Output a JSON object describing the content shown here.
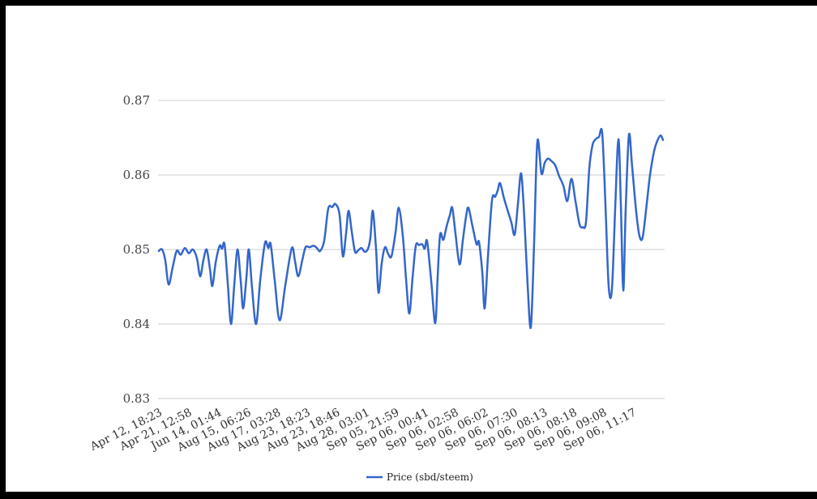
{
  "window": {
    "frame_color": "#000000",
    "canvas_color": "#ffffff"
  },
  "colors": {
    "line": "#3366cc",
    "grid": "#cccccc",
    "y_axis_text": "#444444",
    "x_axis_text": "#333333",
    "legend_text": "#222222"
  },
  "chart_data": {
    "type": "line",
    "title": "",
    "grid": true,
    "legend": {
      "position": "bottom",
      "label": "Price (sbd/steem)"
    },
    "y_axis": {
      "range": [
        0.83,
        0.87
      ],
      "tick_values": [
        0.87,
        0.86,
        0.85,
        0.84,
        0.83
      ],
      "tick_labels": [
        "0.87",
        "0.86",
        "0.85",
        "0.84",
        "0.83"
      ]
    },
    "x_axis": {
      "tick_labels": [
        "Apr 12, 18:23",
        "Apr 21, 12:58",
        "Jun 14, 01:44",
        "Aug 15, 06:26",
        "Aug 17, 03:28",
        "Aug 23, 18:23",
        "Aug 23, 18:46",
        "Aug 28, 03:01",
        "Sep 05, 21:59",
        "Sep 06, 00:41",
        "Sep 06, 02:58",
        "Sep 06, 06:02",
        "Sep 06, 07:30",
        "Sep 06, 08:13",
        "Sep 06, 08:18",
        "Sep 06, 09:08",
        "Sep 06, 11:17"
      ],
      "label_rotation_deg": -27
    },
    "series": [
      {
        "name": "Price (sbd/steem)",
        "color": "#3366cc",
        "points": [
          [
            196,
            0.8498
          ],
          [
            200,
            0.85
          ],
          [
            204,
            0.8485
          ],
          [
            208,
            0.8453
          ],
          [
            213,
            0.8476
          ],
          [
            218,
            0.8498
          ],
          [
            223,
            0.8493
          ],
          [
            228,
            0.8502
          ],
          [
            233,
            0.8495
          ],
          [
            238,
            0.85
          ],
          [
            243,
            0.8488
          ],
          [
            247,
            0.8464
          ],
          [
            251,
            0.8486
          ],
          [
            255,
            0.85
          ],
          [
            259,
            0.8474
          ],
          [
            262,
            0.8451
          ],
          [
            266,
            0.8482
          ],
          [
            271,
            0.8505
          ],
          [
            274,
            0.8501
          ],
          [
            277,
            0.8507
          ],
          [
            281,
            0.8455
          ],
          [
            285,
            0.84
          ],
          [
            289,
            0.8452
          ],
          [
            293,
            0.85
          ],
          [
            297,
            0.8458
          ],
          [
            300,
            0.8421
          ],
          [
            304,
            0.8462
          ],
          [
            307,
            0.85
          ],
          [
            311,
            0.8448
          ],
          [
            316,
            0.84
          ],
          [
            321,
            0.8458
          ],
          [
            327,
            0.8509
          ],
          [
            331,
            0.8502
          ],
          [
            334,
            0.8507
          ],
          [
            339,
            0.8458
          ],
          [
            345,
            0.8405
          ],
          [
            352,
            0.8452
          ],
          [
            360,
            0.8502
          ],
          [
            364,
            0.8484
          ],
          [
            368,
            0.8464
          ],
          [
            373,
            0.8486
          ],
          [
            377,
            0.8503
          ],
          [
            382,
            0.8503
          ],
          [
            387,
            0.8505
          ],
          [
            391,
            0.8502
          ],
          [
            395,
            0.8498
          ],
          [
            400,
            0.8512
          ],
          [
            405,
            0.8555
          ],
          [
            410,
            0.8557
          ],
          [
            414,
            0.8561
          ],
          [
            419,
            0.8546
          ],
          [
            423,
            0.8491
          ],
          [
            427,
            0.8522
          ],
          [
            430,
            0.8552
          ],
          [
            434,
            0.8524
          ],
          [
            438,
            0.8497
          ],
          [
            442,
            0.8499
          ],
          [
            446,
            0.8502
          ],
          [
            450,
            0.8497
          ],
          [
            454,
            0.8501
          ],
          [
            457,
            0.8516
          ],
          [
            460,
            0.8552
          ],
          [
            464,
            0.85
          ],
          [
            467,
            0.8442
          ],
          [
            471,
            0.8482
          ],
          [
            475,
            0.8503
          ],
          [
            479,
            0.8494
          ],
          [
            483,
            0.8491
          ],
          [
            488,
            0.8523
          ],
          [
            492,
            0.8556
          ],
          [
            497,
            0.8518
          ],
          [
            501,
            0.846
          ],
          [
            505,
            0.8414
          ],
          [
            509,
            0.8462
          ],
          [
            513,
            0.8505
          ],
          [
            517,
            0.8506
          ],
          [
            521,
            0.8507
          ],
          [
            524,
            0.8501
          ],
          [
            527,
            0.8511
          ],
          [
            532,
            0.8458
          ],
          [
            537,
            0.8401
          ],
          [
            540,
            0.8464
          ],
          [
            543,
            0.852
          ],
          [
            547,
            0.8513
          ],
          [
            551,
            0.8531
          ],
          [
            555,
            0.8546
          ],
          [
            558,
            0.8556
          ],
          [
            562,
            0.8521
          ],
          [
            567,
            0.848
          ],
          [
            571,
            0.8512
          ],
          [
            575,
            0.8544
          ],
          [
            578,
            0.8556
          ],
          [
            583,
            0.8531
          ],
          [
            588,
            0.8507
          ],
          [
            591,
            0.851
          ],
          [
            595,
            0.847
          ],
          [
            598,
            0.8421
          ],
          [
            602,
            0.849
          ],
          [
            607,
            0.8566
          ],
          [
            611,
            0.8571
          ],
          [
            614,
            0.8579
          ],
          [
            617,
            0.8589
          ],
          [
            622,
            0.8568
          ],
          [
            627,
            0.855
          ],
          [
            631,
            0.8536
          ],
          [
            635,
            0.852
          ],
          [
            639,
            0.8561
          ],
          [
            643,
            0.8602
          ],
          [
            647,
            0.854
          ],
          [
            651,
            0.8452
          ],
          [
            655,
            0.8396
          ],
          [
            659,
            0.851
          ],
          [
            663,
            0.8645
          ],
          [
            668,
            0.8602
          ],
          [
            672,
            0.8616
          ],
          [
            676,
            0.8622
          ],
          [
            680,
            0.8619
          ],
          [
            685,
            0.8613
          ],
          [
            690,
            0.8598
          ],
          [
            695,
            0.8586
          ],
          [
            700,
            0.8565
          ],
          [
            705,
            0.8595
          ],
          [
            710,
            0.8565
          ],
          [
            715,
            0.8534
          ],
          [
            719,
            0.853
          ],
          [
            723,
            0.8537
          ],
          [
            727,
            0.8608
          ],
          [
            731,
            0.864
          ],
          [
            735,
            0.8648
          ],
          [
            739,
            0.8651
          ],
          [
            743,
            0.8656
          ],
          [
            747,
            0.856
          ],
          [
            751,
            0.845
          ],
          [
            755,
            0.8447
          ],
          [
            759,
            0.8555
          ],
          [
            763,
            0.8648
          ],
          [
            766,
            0.856
          ],
          [
            769,
            0.8445
          ],
          [
            772,
            0.8555
          ],
          [
            776,
            0.8654
          ],
          [
            780,
            0.861
          ],
          [
            785,
            0.855
          ],
          [
            789,
            0.8518
          ],
          [
            793,
            0.8517
          ],
          [
            798,
            0.8562
          ],
          [
            802,
            0.86
          ],
          [
            807,
            0.8632
          ],
          [
            811,
            0.8646
          ],
          [
            815,
            0.8653
          ],
          [
            818,
            0.8647
          ]
        ]
      }
    ]
  }
}
